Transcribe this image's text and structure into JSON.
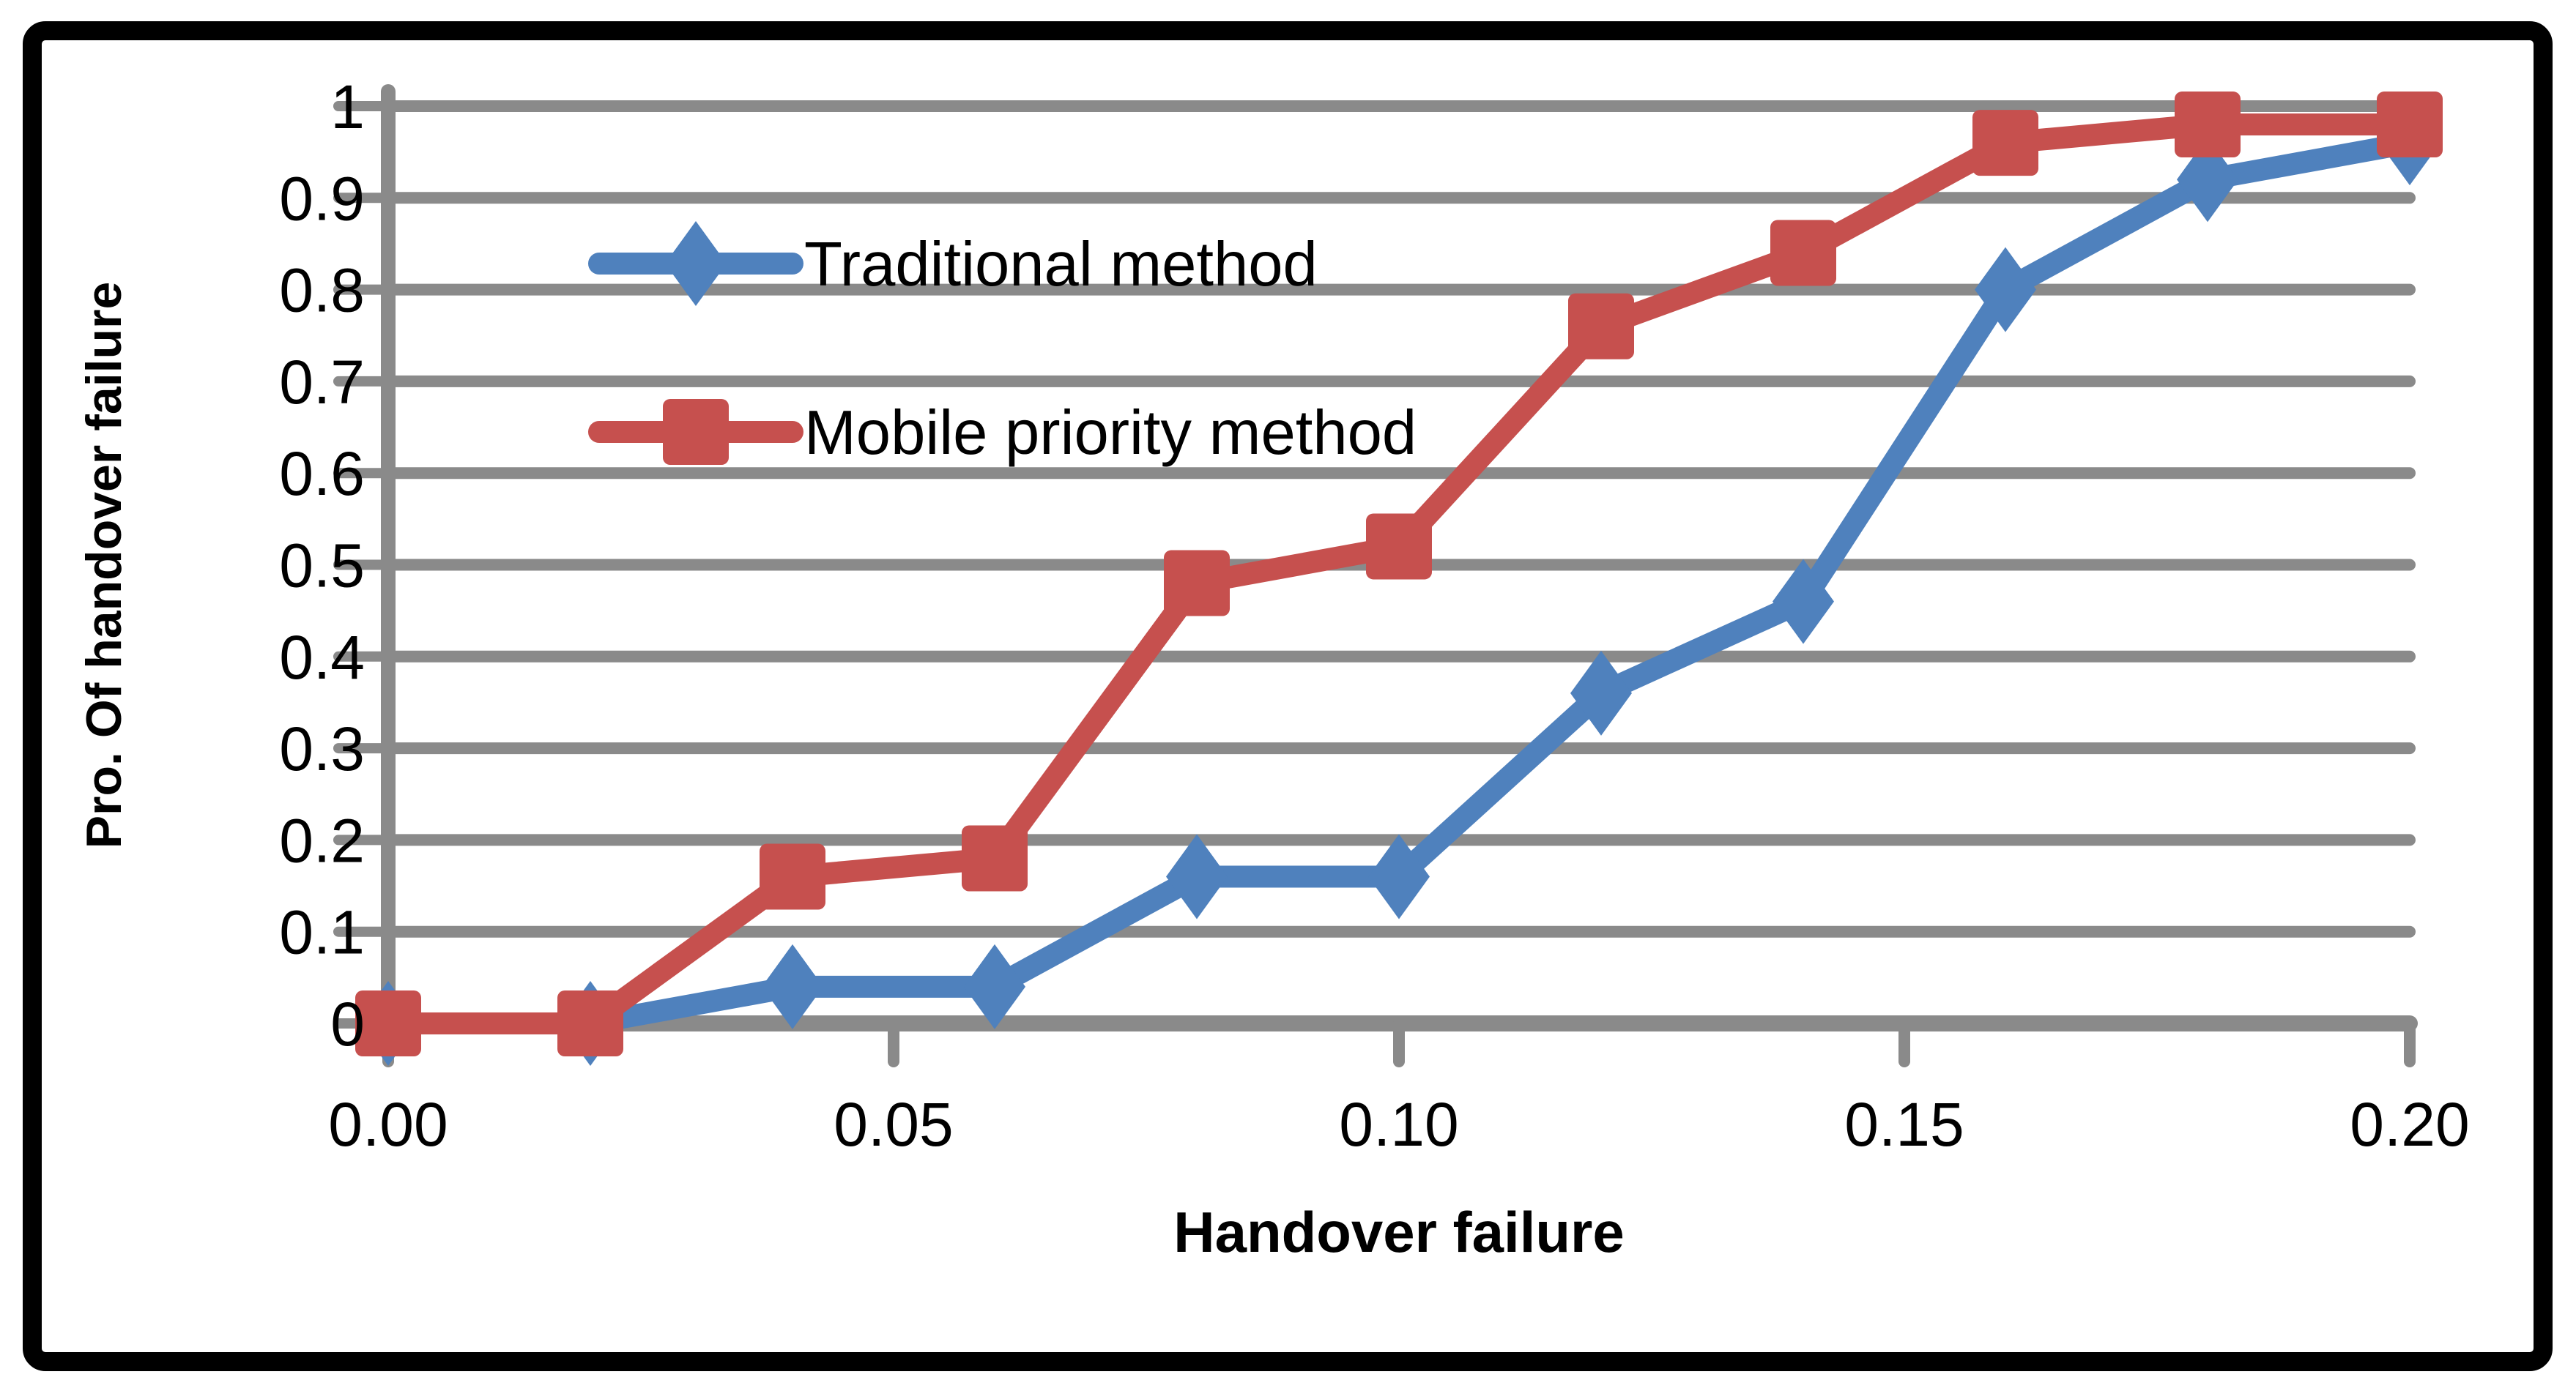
{
  "chart_data": {
    "type": "line",
    "title": "",
    "xlabel": "Handover failure",
    "ylabel": "Pro. Of handover failure",
    "x": [
      0.0,
      0.02,
      0.04,
      0.06,
      0.08,
      0.1,
      0.12,
      0.14,
      0.16,
      0.18,
      0.2
    ],
    "series": [
      {
        "name": "Traditional method",
        "color": "#4F81BD",
        "marker": "diamond",
        "values": [
          0,
          0,
          0.04,
          0.04,
          0.16,
          0.16,
          0.36,
          0.46,
          0.8,
          0.92,
          0.96
        ]
      },
      {
        "name": "Mobile priority method",
        "color": "#C6504E",
        "marker": "square",
        "values": [
          0,
          0,
          0.16,
          0.18,
          0.48,
          0.52,
          0.76,
          0.84,
          0.96,
          0.98,
          0.98
        ]
      }
    ],
    "xtick_labels": [
      "0.00",
      "0.05",
      "0.10",
      "0.15",
      "0.20"
    ],
    "xtick_values": [
      0,
      0.05,
      0.1,
      0.15,
      0.2
    ],
    "ytick_labels": [
      "0",
      "0.1",
      "0.2",
      "0.3",
      "0.4",
      "0.5",
      "0.6",
      "0.7",
      "0.8",
      "0.9",
      "1"
    ],
    "ytick_values": [
      0,
      0.1,
      0.2,
      0.3,
      0.4,
      0.5,
      0.6,
      0.7,
      0.8,
      0.9,
      1
    ],
    "xlim": [
      0,
      0.2
    ],
    "ylim": [
      0,
      1
    ],
    "grid": "horizontal-only",
    "legend_position": "inside-upper-left",
    "colors": {
      "gridline": "#8A8A8A",
      "axis": "#8A8A8A",
      "text": "#000000",
      "frame": "#000000",
      "background": "#FFFFFF"
    }
  }
}
